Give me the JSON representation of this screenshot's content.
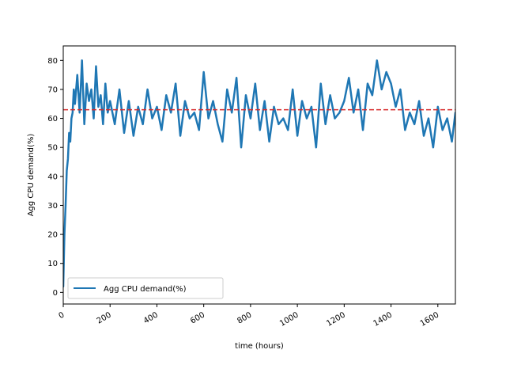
{
  "chart_data": {
    "type": "line",
    "title": "",
    "xlabel": "time (hours)",
    "ylabel": "Agg CPU demand(%)",
    "xlim": [
      0,
      1675
    ],
    "ylim": [
      -4,
      85
    ],
    "xticks": [
      0,
      200,
      400,
      600,
      800,
      1000,
      1200,
      1400,
      1600
    ],
    "yticks": [
      0,
      10,
      20,
      30,
      40,
      50,
      60,
      70,
      80
    ],
    "xtick_rotation": 30,
    "legend": {
      "position": "lower left",
      "entries": [
        "Agg CPU demand(%)"
      ]
    },
    "grid": false,
    "reference_line": {
      "y": 63,
      "color": "#d62728",
      "style": "dashed"
    },
    "series": [
      {
        "name": "Agg CPU demand(%)",
        "color": "#1f77b4",
        "x": [
          0,
          5,
          10,
          15,
          20,
          25,
          30,
          35,
          40,
          45,
          50,
          60,
          70,
          80,
          90,
          100,
          110,
          120,
          130,
          140,
          150,
          160,
          170,
          180,
          190,
          200,
          220,
          240,
          260,
          280,
          300,
          320,
          340,
          360,
          380,
          400,
          420,
          440,
          460,
          480,
          500,
          520,
          540,
          560,
          580,
          600,
          620,
          640,
          660,
          680,
          700,
          720,
          740,
          760,
          780,
          800,
          820,
          840,
          860,
          880,
          900,
          920,
          940,
          960,
          980,
          1000,
          1020,
          1040,
          1060,
          1080,
          1100,
          1120,
          1140,
          1160,
          1180,
          1200,
          1220,
          1240,
          1260,
          1280,
          1300,
          1320,
          1340,
          1360,
          1380,
          1400,
          1420,
          1440,
          1460,
          1480,
          1500,
          1520,
          1540,
          1560,
          1580,
          1600,
          1620,
          1640,
          1660,
          1675
        ],
        "y": [
          2,
          20,
          30,
          42,
          46,
          55,
          52,
          60,
          62,
          70,
          65,
          75,
          62,
          80,
          58,
          72,
          66,
          70,
          60,
          78,
          64,
          68,
          58,
          72,
          62,
          66,
          58,
          70,
          55,
          66,
          54,
          64,
          58,
          70,
          60,
          64,
          56,
          68,
          62,
          72,
          54,
          66,
          60,
          62,
          56,
          76,
          60,
          66,
          58,
          52,
          70,
          62,
          74,
          50,
          68,
          60,
          72,
          56,
          66,
          52,
          64,
          58,
          60,
          56,
          70,
          54,
          66,
          60,
          64,
          50,
          72,
          58,
          68,
          60,
          62,
          66,
          74,
          62,
          70,
          56,
          72,
          68,
          80,
          70,
          76,
          72,
          64,
          70,
          56,
          62,
          58,
          66,
          54,
          60,
          50,
          64,
          56,
          60,
          52,
          62
        ]
      }
    ]
  }
}
